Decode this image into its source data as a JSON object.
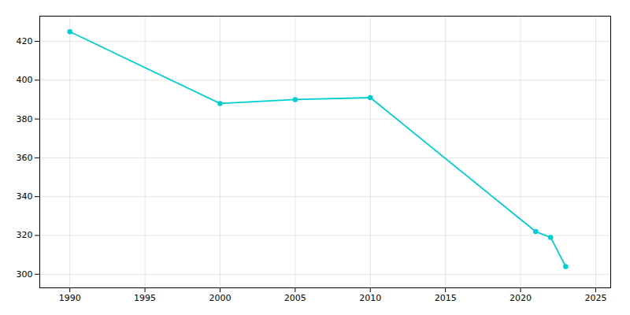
{
  "chart_data": {
    "type": "line",
    "x": [
      1990,
      2000,
      2005,
      2010,
      2021,
      2022,
      2023
    ],
    "values": [
      425,
      388,
      390,
      391,
      322,
      319,
      304
    ],
    "color": "#00CED1",
    "marker": "circle",
    "xlim": [
      1988,
      2026
    ],
    "ylim": [
      293,
      433
    ],
    "xticks": [
      1990,
      1995,
      2000,
      2005,
      2010,
      2015,
      2020,
      2025
    ],
    "yticks": [
      300,
      320,
      340,
      360,
      380,
      400,
      420
    ],
    "grid": true
  }
}
